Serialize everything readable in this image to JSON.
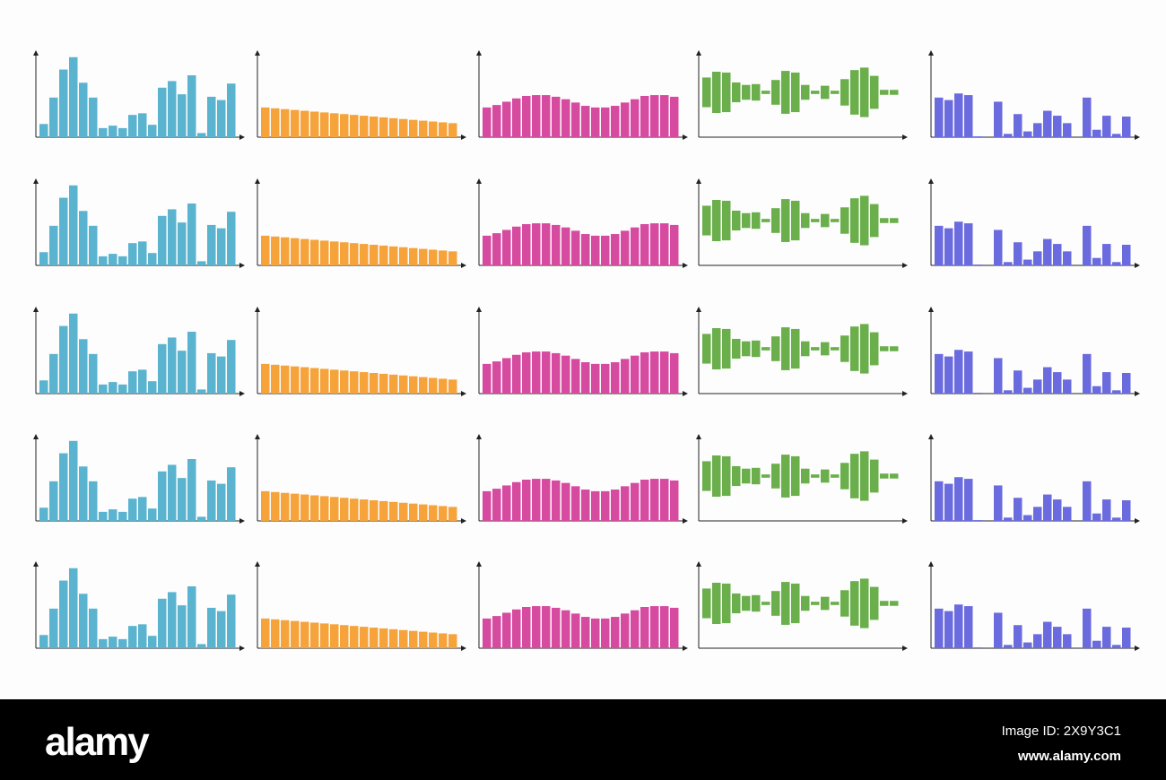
{
  "chart_data": [
    {
      "type": "bar",
      "color": "#5ab4d0",
      "ylim": [
        0,
        100
      ],
      "values": [
        16,
        48,
        82,
        97,
        66,
        48,
        11,
        14,
        11,
        27,
        29,
        15,
        60,
        68,
        52,
        75,
        5,
        49,
        45,
        65
      ]
    },
    {
      "type": "bar",
      "color": "#f5a33a",
      "ylim": [
        0,
        100
      ],
      "values": [
        36,
        35,
        34,
        33,
        32,
        31,
        30,
        29,
        28,
        27,
        26,
        25,
        24,
        23,
        22,
        21,
        20,
        19,
        18,
        17
      ]
    },
    {
      "type": "bar",
      "color": "#d64aa0",
      "ylim": [
        0,
        100
      ],
      "values": [
        36,
        39,
        43,
        47,
        50,
        51,
        51,
        49,
        46,
        42,
        38,
        36,
        36,
        38,
        42,
        46,
        50,
        51,
        51,
        49
      ]
    },
    {
      "type": "symmetric",
      "color": "#6aaf4b",
      "ylim": [
        0,
        100
      ],
      "values": [
        36,
        50,
        48,
        24,
        18,
        20,
        4,
        30,
        52,
        48,
        18,
        4,
        16,
        4,
        32,
        54,
        60,
        40,
        6,
        6
      ]
    },
    {
      "type": "bar",
      "color": "#6b6be0",
      "ylim": [
        0,
        100
      ],
      "values": [
        48,
        45,
        53,
        51,
        1,
        0,
        43,
        4,
        28,
        7,
        17,
        32,
        26,
        17,
        0,
        48,
        9,
        26,
        4,
        25
      ]
    },
    {
      "type": "bar",
      "color": "#5ab4d0",
      "ylim": [
        0,
        100
      ],
      "values": [
        16,
        48,
        82,
        97,
        66,
        48,
        11,
        14,
        11,
        27,
        29,
        15,
        60,
        68,
        52,
        75,
        5,
        49,
        45,
        65
      ]
    },
    {
      "type": "bar",
      "color": "#f5a33a",
      "ylim": [
        0,
        100
      ],
      "values": [
        36,
        35,
        34,
        33,
        32,
        31,
        30,
        29,
        28,
        27,
        26,
        25,
        24,
        23,
        22,
        21,
        20,
        19,
        18,
        17
      ]
    },
    {
      "type": "bar",
      "color": "#d64aa0",
      "ylim": [
        0,
        100
      ],
      "values": [
        36,
        39,
        43,
        47,
        50,
        51,
        51,
        49,
        46,
        42,
        38,
        36,
        36,
        38,
        42,
        46,
        50,
        51,
        51,
        49
      ]
    },
    {
      "type": "symmetric",
      "color": "#6aaf4b",
      "ylim": [
        0,
        100
      ],
      "values": [
        36,
        50,
        48,
        24,
        18,
        20,
        4,
        30,
        52,
        48,
        18,
        4,
        16,
        4,
        32,
        54,
        60,
        40,
        6,
        6
      ]
    },
    {
      "type": "bar",
      "color": "#6b6be0",
      "ylim": [
        0,
        100
      ],
      "values": [
        48,
        45,
        53,
        51,
        1,
        0,
        43,
        4,
        28,
        7,
        17,
        32,
        26,
        17,
        0,
        48,
        9,
        26,
        4,
        25
      ]
    },
    {
      "type": "bar",
      "color": "#5ab4d0",
      "ylim": [
        0,
        100
      ],
      "values": [
        16,
        48,
        82,
        97,
        66,
        48,
        11,
        14,
        11,
        27,
        29,
        15,
        60,
        68,
        52,
        75,
        5,
        49,
        45,
        65
      ]
    },
    {
      "type": "bar",
      "color": "#f5a33a",
      "ylim": [
        0,
        100
      ],
      "values": [
        36,
        35,
        34,
        33,
        32,
        31,
        30,
        29,
        28,
        27,
        26,
        25,
        24,
        23,
        22,
        21,
        20,
        19,
        18,
        17
      ]
    },
    {
      "type": "bar",
      "color": "#d64aa0",
      "ylim": [
        0,
        100
      ],
      "values": [
        36,
        39,
        43,
        47,
        50,
        51,
        51,
        49,
        46,
        42,
        38,
        36,
        36,
        38,
        42,
        46,
        50,
        51,
        51,
        49
      ]
    },
    {
      "type": "symmetric",
      "color": "#6aaf4b",
      "ylim": [
        0,
        100
      ],
      "values": [
        36,
        50,
        48,
        24,
        18,
        20,
        4,
        30,
        52,
        48,
        18,
        4,
        16,
        4,
        32,
        54,
        60,
        40,
        6,
        6
      ]
    },
    {
      "type": "bar",
      "color": "#6b6be0",
      "ylim": [
        0,
        100
      ],
      "values": [
        48,
        45,
        53,
        51,
        1,
        0,
        43,
        4,
        28,
        7,
        17,
        32,
        26,
        17,
        0,
        48,
        9,
        26,
        4,
        25
      ]
    },
    {
      "type": "bar",
      "color": "#5ab4d0",
      "ylim": [
        0,
        100
      ],
      "values": [
        16,
        48,
        82,
        97,
        66,
        48,
        11,
        14,
        11,
        27,
        29,
        15,
        60,
        68,
        52,
        75,
        5,
        49,
        45,
        65
      ]
    },
    {
      "type": "bar",
      "color": "#f5a33a",
      "ylim": [
        0,
        100
      ],
      "values": [
        36,
        35,
        34,
        33,
        32,
        31,
        30,
        29,
        28,
        27,
        26,
        25,
        24,
        23,
        22,
        21,
        20,
        19,
        18,
        17
      ]
    },
    {
      "type": "bar",
      "color": "#d64aa0",
      "ylim": [
        0,
        100
      ],
      "values": [
        36,
        39,
        43,
        47,
        50,
        51,
        51,
        49,
        46,
        42,
        38,
        36,
        36,
        38,
        42,
        46,
        50,
        51,
        51,
        49
      ]
    },
    {
      "type": "symmetric",
      "color": "#6aaf4b",
      "ylim": [
        0,
        100
      ],
      "values": [
        36,
        50,
        48,
        24,
        18,
        20,
        4,
        30,
        52,
        48,
        18,
        4,
        16,
        4,
        32,
        54,
        60,
        40,
        6,
        6
      ]
    },
    {
      "type": "bar",
      "color": "#6b6be0",
      "ylim": [
        0,
        100
      ],
      "values": [
        48,
        45,
        53,
        51,
        1,
        0,
        43,
        4,
        28,
        7,
        17,
        32,
        26,
        17,
        0,
        48,
        9,
        26,
        4,
        25
      ]
    },
    {
      "type": "bar",
      "color": "#5ab4d0",
      "ylim": [
        0,
        100
      ],
      "values": [
        16,
        48,
        82,
        97,
        66,
        48,
        11,
        14,
        11,
        27,
        29,
        15,
        60,
        68,
        52,
        75,
        5,
        49,
        45,
        65
      ]
    },
    {
      "type": "bar",
      "color": "#f5a33a",
      "ylim": [
        0,
        100
      ],
      "values": [
        36,
        35,
        34,
        33,
        32,
        31,
        30,
        29,
        28,
        27,
        26,
        25,
        24,
        23,
        22,
        21,
        20,
        19,
        18,
        17
      ]
    },
    {
      "type": "bar",
      "color": "#d64aa0",
      "ylim": [
        0,
        100
      ],
      "values": [
        36,
        39,
        43,
        47,
        50,
        51,
        51,
        49,
        46,
        42,
        38,
        36,
        36,
        38,
        42,
        46,
        50,
        51,
        51,
        49
      ]
    },
    {
      "type": "symmetric",
      "color": "#6aaf4b",
      "ylim": [
        0,
        100
      ],
      "values": [
        36,
        50,
        48,
        24,
        18,
        20,
        4,
        30,
        52,
        48,
        18,
        4,
        16,
        4,
        32,
        54,
        60,
        40,
        6,
        6
      ]
    },
    {
      "type": "bar",
      "color": "#6b6be0",
      "ylim": [
        0,
        100
      ],
      "values": [
        48,
        45,
        53,
        51,
        1,
        0,
        43,
        4,
        28,
        7,
        17,
        32,
        26,
        17,
        0,
        48,
        9,
        26,
        4,
        25
      ]
    }
  ],
  "watermark": {
    "logo": "alamy",
    "image_id": "Image ID: 2X9Y3C1",
    "url": "www.alamy.com"
  }
}
